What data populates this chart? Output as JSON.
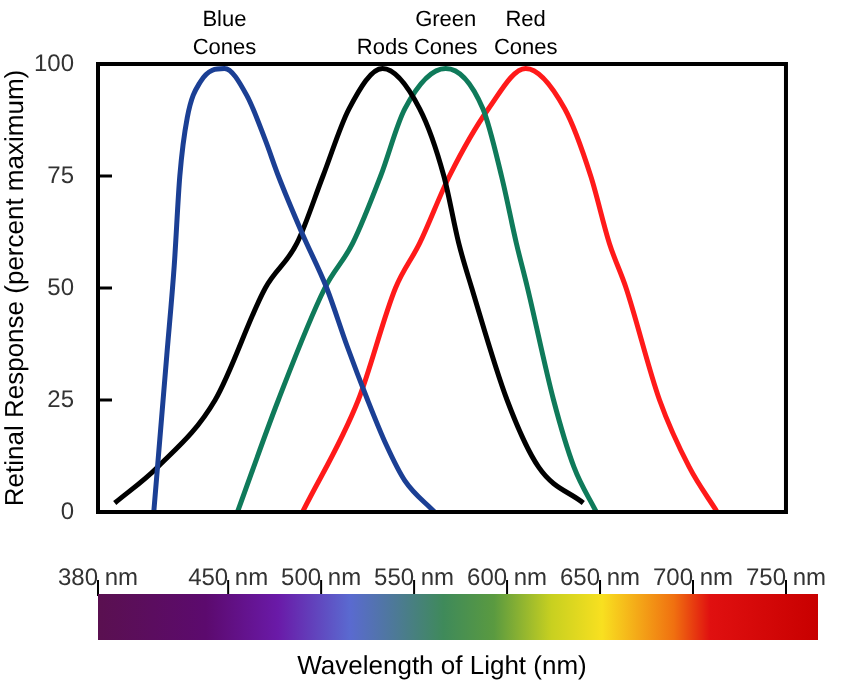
{
  "chart_data": {
    "type": "line",
    "xlabel": "Wavelength of Light (nm)",
    "ylabel": "Retinal Response (percent maximum)",
    "xlim": [
      380,
      750
    ],
    "xticks": [
      {
        "value": 380,
        "label": "380 nm"
      },
      {
        "value": 450,
        "label": "450 nm"
      },
      {
        "value": 500,
        "label": "500 nm"
      },
      {
        "value": 550,
        "label": "550 nm"
      },
      {
        "value": 600,
        "label": "600 nm"
      },
      {
        "value": 650,
        "label": "650 nm"
      },
      {
        "value": 700,
        "label": "700 nm"
      },
      {
        "value": 750,
        "label": "750 nm"
      }
    ],
    "ylim": [
      0,
      100
    ],
    "yticks": [
      0,
      25,
      50,
      75,
      100
    ],
    "grid": false,
    "legend": false,
    "marker": "none",
    "line_style": "solid",
    "series": [
      {
        "name": "Blue Cones",
        "color": "#1b3f94",
        "x": [
          410,
          413,
          417,
          421,
          424,
          428,
          435,
          448,
          460,
          470,
          477,
          490,
          503,
          514,
          525,
          535,
          545,
          561
        ],
        "values": [
          0,
          15,
          35,
          55,
          75,
          88,
          96,
          99,
          93,
          83,
          75,
          62,
          50,
          37,
          25,
          15,
          7,
          0
        ]
      },
      {
        "name": "Rods",
        "color": "#000000",
        "x": [
          389,
          412,
          443,
          470,
          487,
          501,
          515,
          533,
          553,
          566,
          574,
          581,
          600,
          617,
          641
        ],
        "values": [
          2,
          10,
          25,
          50,
          60,
          75,
          90,
          99,
          90,
          75,
          60,
          50,
          25,
          10,
          2
        ]
      },
      {
        "name": "Green Cones",
        "color": "#0f7a5a",
        "x": [
          455,
          477,
          502,
          517,
          532,
          545,
          567,
          587,
          597,
          605,
          611,
          625,
          636,
          648
        ],
        "values": [
          0,
          25,
          50,
          60,
          75,
          90,
          99,
          90,
          75,
          60,
          50,
          25,
          10,
          0
        ]
      },
      {
        "name": "Red Cones",
        "color": "#ff1a1a",
        "x": [
          490,
          520,
          540,
          553,
          569,
          590,
          610,
          631,
          645,
          655,
          664,
          682,
          698,
          713
        ],
        "values": [
          0,
          25,
          50,
          60,
          75,
          90,
          99,
          90,
          75,
          60,
          50,
          25,
          10,
          0
        ]
      }
    ]
  }
}
